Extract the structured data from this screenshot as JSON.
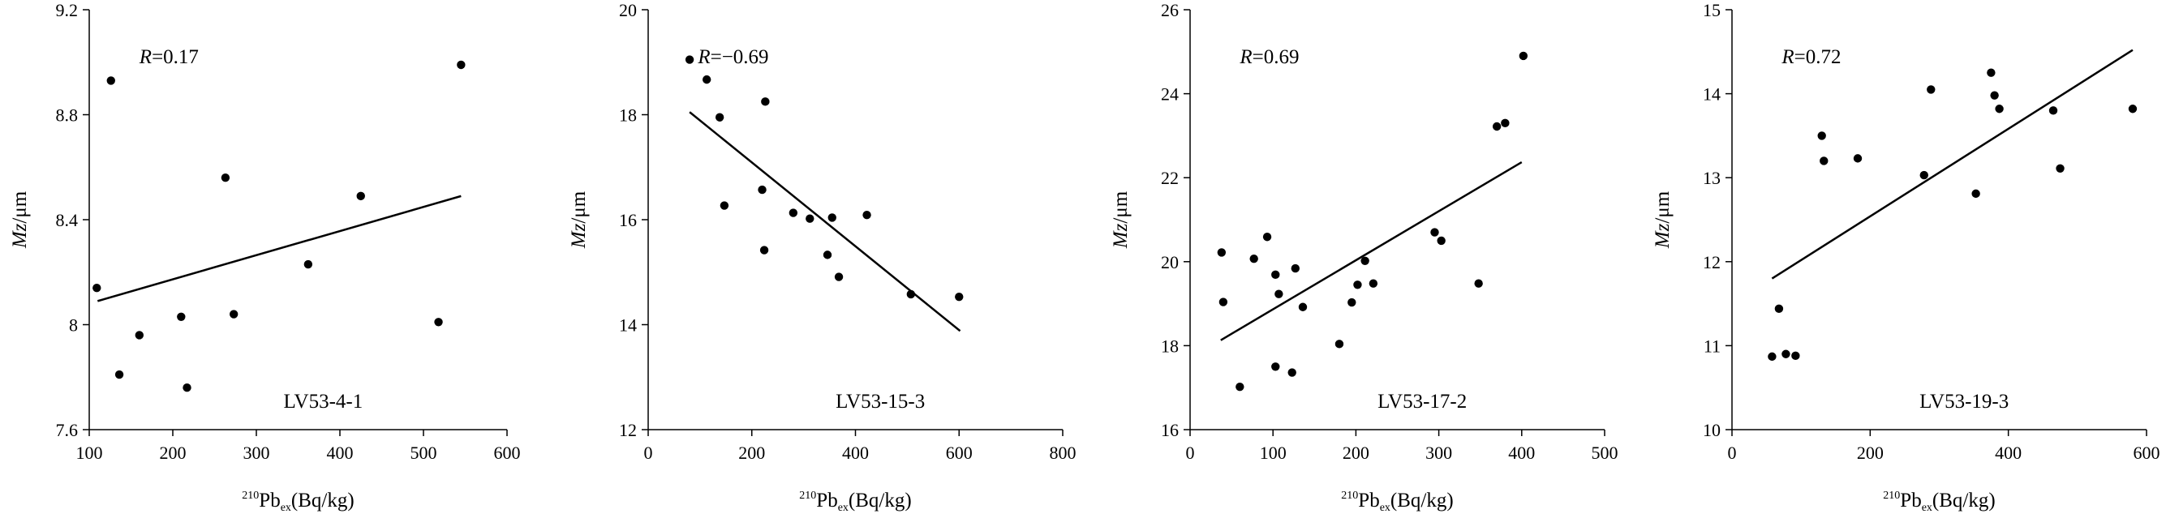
{
  "charts": [
    {
      "type": "scatter",
      "r_prefix": "R",
      "r_value": "=0.17",
      "sample": "LV53-4-1",
      "xlim": [
        100,
        600
      ],
      "ylim": [
        7.6,
        9.2
      ],
      "xticks": [
        100,
        200,
        300,
        400,
        500,
        600
      ],
      "xtick_labels": [
        "100",
        "200",
        "300",
        "400",
        "500",
        "600"
      ],
      "yticks": [
        7.6,
        8.0,
        8.4,
        8.8,
        9.2
      ],
      "ytick_labels": [
        "7.6",
        "8",
        "8.4",
        "8.8",
        "9.2"
      ],
      "points": [
        [
          109,
          8.14
        ],
        [
          126,
          8.93
        ],
        [
          136,
          7.81
        ],
        [
          160,
          7.96
        ],
        [
          210,
          8.03
        ],
        [
          217,
          7.76
        ],
        [
          263,
          8.56
        ],
        [
          273,
          8.04
        ],
        [
          362,
          8.23
        ],
        [
          425,
          8.49
        ],
        [
          518,
          8.01
        ],
        [
          545,
          8.99
        ]
      ],
      "fit_line": [
        [
          110,
          8.09
        ],
        [
          545,
          8.49
        ]
      ]
    },
    {
      "type": "scatter",
      "r_prefix": "R",
      "r_value": "=−0.69",
      "sample": "LV53-15-3",
      "xlim": [
        0,
        800
      ],
      "ylim": [
        12,
        20
      ],
      "xticks": [
        0,
        200,
        400,
        600,
        800
      ],
      "xtick_labels": [
        "0",
        "200",
        "400",
        "600",
        "800"
      ],
      "yticks": [
        12,
        14,
        16,
        18,
        20
      ],
      "ytick_labels": [
        "12",
        "14",
        "16",
        "18",
        "20"
      ],
      "points": [
        [
          80,
          19.05
        ],
        [
          113,
          18.67
        ],
        [
          138,
          17.95
        ],
        [
          147,
          16.27
        ],
        [
          220,
          16.57
        ],
        [
          226,
          18.25
        ],
        [
          224,
          15.42
        ],
        [
          280,
          16.13
        ],
        [
          312,
          16.02
        ],
        [
          346,
          15.33
        ],
        [
          355,
          16.04
        ],
        [
          368,
          14.91
        ],
        [
          422,
          16.09
        ],
        [
          507,
          14.58
        ],
        [
          600,
          14.53
        ]
      ],
      "fit_line": [
        [
          80,
          18.05
        ],
        [
          602,
          13.88
        ]
      ]
    },
    {
      "type": "scatter",
      "r_prefix": "R",
      "r_value": "=0.69",
      "sample": "LV53-17-2",
      "xlim": [
        0,
        500
      ],
      "ylim": [
        16,
        26
      ],
      "xticks": [
        0,
        100,
        200,
        300,
        400,
        500
      ],
      "xtick_labels": [
        "0",
        "100",
        "200",
        "300",
        "400",
        "500"
      ],
      "yticks": [
        16,
        18,
        20,
        22,
        24,
        26
      ],
      "ytick_labels": [
        "16",
        "18",
        "20",
        "22",
        "24",
        "26"
      ],
      "points": [
        [
          38,
          20.22
        ],
        [
          40,
          19.04
        ],
        [
          60,
          17.02
        ],
        [
          77,
          20.07
        ],
        [
          93,
          20.59
        ],
        [
          103,
          17.5
        ],
        [
          103,
          19.69
        ],
        [
          107,
          19.23
        ],
        [
          123,
          17.36
        ],
        [
          127,
          19.84
        ],
        [
          136,
          18.92
        ],
        [
          180,
          18.04
        ],
        [
          195,
          19.03
        ],
        [
          202,
          19.45
        ],
        [
          211,
          20.02
        ],
        [
          221,
          19.48
        ],
        [
          295,
          20.7
        ],
        [
          303,
          20.5
        ],
        [
          348,
          19.48
        ],
        [
          370,
          23.22
        ],
        [
          380,
          23.3
        ],
        [
          402,
          24.9
        ]
      ],
      "fit_line": [
        [
          37,
          18.13
        ],
        [
          400,
          22.37
        ]
      ]
    },
    {
      "type": "scatter",
      "r_prefix": "R",
      "r_value": "=0.72",
      "sample": "LV53-19-3",
      "xlim": [
        0,
        600
      ],
      "ylim": [
        10,
        15
      ],
      "xticks": [
        0,
        200,
        400,
        600
      ],
      "xtick_labels": [
        "0",
        "200",
        "400",
        "600"
      ],
      "yticks": [
        10,
        11,
        12,
        13,
        14,
        15
      ],
      "ytick_labels": [
        "10",
        "11",
        "12",
        "13",
        "14",
        "15"
      ],
      "points": [
        [
          58,
          10.87
        ],
        [
          68,
          11.44
        ],
        [
          78,
          10.9
        ],
        [
          92,
          10.88
        ],
        [
          130,
          13.5
        ],
        [
          133,
          13.2
        ],
        [
          182,
          13.23
        ],
        [
          278,
          13.03
        ],
        [
          288,
          14.05
        ],
        [
          353,
          12.81
        ],
        [
          375,
          14.25
        ],
        [
          380,
          13.98
        ],
        [
          387,
          13.82
        ],
        [
          465,
          13.8
        ],
        [
          475,
          13.11
        ],
        [
          580,
          13.82
        ]
      ],
      "fit_line": [
        [
          58,
          11.8
        ],
        [
          580,
          14.52
        ]
      ]
    }
  ],
  "axis_titles": {
    "y_italic": "Mz",
    "y_unit": "/μm",
    "x_sup": "210",
    "x_base": "Pb",
    "x_sub": "ex",
    "x_unit": "(Bq/kg)"
  }
}
